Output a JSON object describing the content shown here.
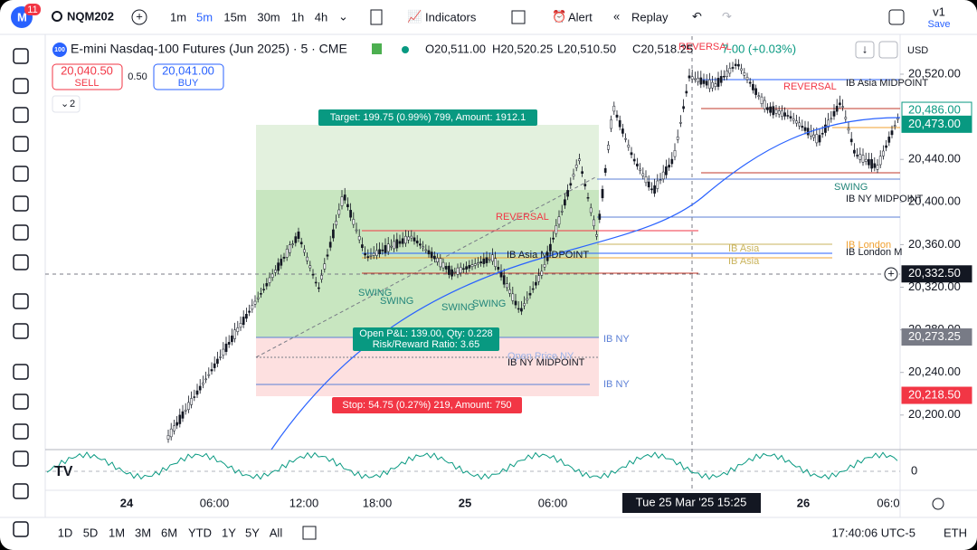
{
  "topbar": {
    "badge": "11",
    "symbol": "NQM202",
    "intervals": [
      "1m",
      "5m",
      "15m",
      "30m",
      "1h",
      "4h"
    ],
    "active_interval": 1,
    "indicators": "Indicators",
    "alert": "Alert",
    "replay": "Replay",
    "version": "v1",
    "save": "Save"
  },
  "header": {
    "icon": "100",
    "title": "E-mini Nasdaq-100 Futures (Jun 2025) · 5 · CME",
    "ohlc": [
      "O20,511.00",
      "H20,520.25",
      "L20,510.50",
      "C20,518.25"
    ],
    "change": "7.00 (+0.03%)"
  },
  "trade": {
    "sell_price": "20,040.50",
    "sell": "SELL",
    "spread": "0.50",
    "buy_price": "20,041.00",
    "buy": "BUY",
    "layers": "2"
  },
  "price_axis": {
    "currency": "USD",
    "ticks": [
      {
        "value": 20520,
        "label": "20,520.00"
      },
      {
        "value": 20440,
        "label": "20,440.00"
      },
      {
        "value": 20400,
        "label": "20,400.00"
      },
      {
        "value": 20360,
        "label": "20,360.00"
      },
      {
        "value": 20320,
        "label": "20,320.00"
      },
      {
        "value": 20280,
        "label": "20,280.00"
      },
      {
        "value": 20240,
        "label": "20,240.00"
      },
      {
        "value": 20200,
        "label": "20,200.00"
      }
    ],
    "markers": [
      {
        "value": 20486,
        "label": "20,486.00",
        "color": "#ffffff",
        "text": "#089981"
      },
      {
        "value": 20473,
        "label": "20,473.00",
        "color": "#089981",
        "text": "#ffffff"
      },
      {
        "value": 20332.5,
        "label": "20,332.50",
        "color": "#131722",
        "text": "#ffffff"
      },
      {
        "value": 20273.25,
        "label": "20,273.25",
        "color": "#787b86",
        "text": "#ffffff"
      },
      {
        "value": 20218.5,
        "label": "20,218.50",
        "color": "#f23645",
        "text": "#ffffff"
      }
    ],
    "indicator_zero": "0"
  },
  "position": {
    "target": "Target: 199.75 (0.99%) 799, Amount: 1912.1",
    "pnl": "Open P&L: 139.00, Qty: 0.228",
    "rr": "Risk/Reward Ratio: 3.65",
    "stop": "Stop: 54.75 (0.27%) 219, Amount: 750"
  },
  "chart_labels": [
    "REVERSAL",
    "REVERSAL",
    "REVERSAL",
    "SWING",
    "SWING",
    "SWING",
    "SWING",
    "SWING",
    "IB Asia MIDPOINT",
    "IB Asia MIDPOINT",
    "IB NY MIDPOINT",
    "IB NY MIDPOINT",
    "IB Asia",
    "IB Asia",
    "IB London",
    "IB London M",
    "IB NY",
    "IB NY",
    "Open Price NY"
  ],
  "time_axis": {
    "labels": [
      "24",
      "06:00",
      "12:00",
      "18:00",
      "25",
      "06:00",
      "26",
      "06:0"
    ],
    "crosshair": "Tue 25 Mar '25   15:25"
  },
  "bottombar": {
    "ranges": [
      "1D",
      "5D",
      "1M",
      "3M",
      "6M",
      "YTD",
      "1Y",
      "5Y",
      "All"
    ],
    "clock": "17:40:06 UTC-5",
    "session": "ETH"
  }
}
